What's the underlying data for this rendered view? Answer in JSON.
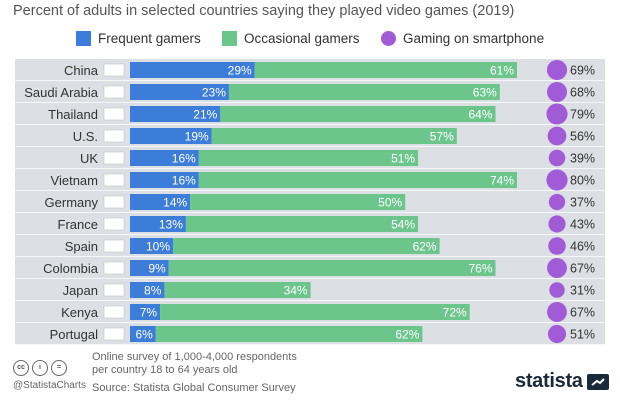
{
  "chart_data": {
    "type": "bar",
    "title": "Percent of adults in selected countries saying they played video games (2019)",
    "categories": [
      "China",
      "Saudi Arabia",
      "Thailand",
      "U.S.",
      "UK",
      "Vietnam",
      "Germany",
      "France",
      "Spain",
      "Colombia",
      "Japan",
      "Kenya",
      "Portugal"
    ],
    "series": [
      {
        "name": "Frequent gamers",
        "values": [
          29,
          23,
          21,
          19,
          16,
          16,
          14,
          13,
          10,
          9,
          8,
          7,
          6
        ]
      },
      {
        "name": "Occasional gamers",
        "values": [
          61,
          63,
          64,
          57,
          51,
          74,
          50,
          54,
          62,
          76,
          34,
          72,
          62
        ]
      },
      {
        "name": "Gaming on smartphone",
        "values": [
          69,
          68,
          79,
          56,
          39,
          80,
          37,
          43,
          46,
          67,
          31,
          67,
          51
        ]
      }
    ],
    "value_suffix": "%",
    "xlim": [
      0,
      100
    ],
    "legend_position": "top"
  },
  "colors": {
    "frequent": "#3b7dd8",
    "occasional": "#6cc68c",
    "smartphone": "#a25bd6",
    "row_bg": "#dcdfe3",
    "row_divider": "#ffffff"
  },
  "footer": {
    "note_line1": "Online survey of 1,000-4,000 respondents",
    "note_line2": "per country 18 to 64 years old",
    "source": "Source: Statista Global Consumer Survey",
    "handle": "@StatistaCharts",
    "brand": "statista",
    "cc_badges": [
      "cc",
      "i",
      "="
    ]
  }
}
